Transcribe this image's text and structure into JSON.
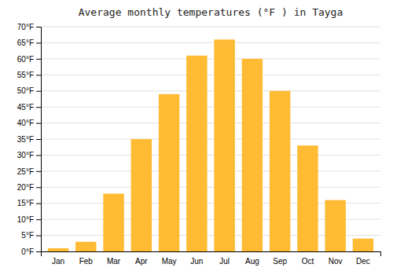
{
  "chart_data": {
    "type": "bar",
    "title": "Average monthly temperatures (°F ) in Tayga",
    "categories": [
      "Jan",
      "Feb",
      "Mar",
      "Apr",
      "May",
      "Jun",
      "Jul",
      "Aug",
      "Sep",
      "Oct",
      "Nov",
      "Dec"
    ],
    "values": [
      1,
      3,
      18,
      35,
      49,
      61,
      66,
      60,
      50,
      33,
      16,
      4
    ],
    "color": "#FFBB33",
    "ylim": [
      0,
      70
    ],
    "yticks": [
      {
        "value": 0,
        "label": "0°F"
      },
      {
        "value": 5,
        "label": "5°F"
      },
      {
        "value": 10,
        "label": "10°F"
      },
      {
        "value": 15,
        "label": "15°F"
      },
      {
        "value": 20,
        "label": "20°F"
      },
      {
        "value": 25,
        "label": "25°F"
      },
      {
        "value": 30,
        "label": "30°F"
      },
      {
        "value": 35,
        "label": "35°F"
      },
      {
        "value": 40,
        "label": "40°F"
      },
      {
        "value": 45,
        "label": "45°F"
      },
      {
        "value": 50,
        "label": "50°F"
      },
      {
        "value": 55,
        "label": "55°F"
      },
      {
        "value": 60,
        "label": "60°F"
      },
      {
        "value": 65,
        "label": "65°F"
      },
      {
        "value": 70,
        "label": "70°F"
      }
    ],
    "grid": true
  }
}
